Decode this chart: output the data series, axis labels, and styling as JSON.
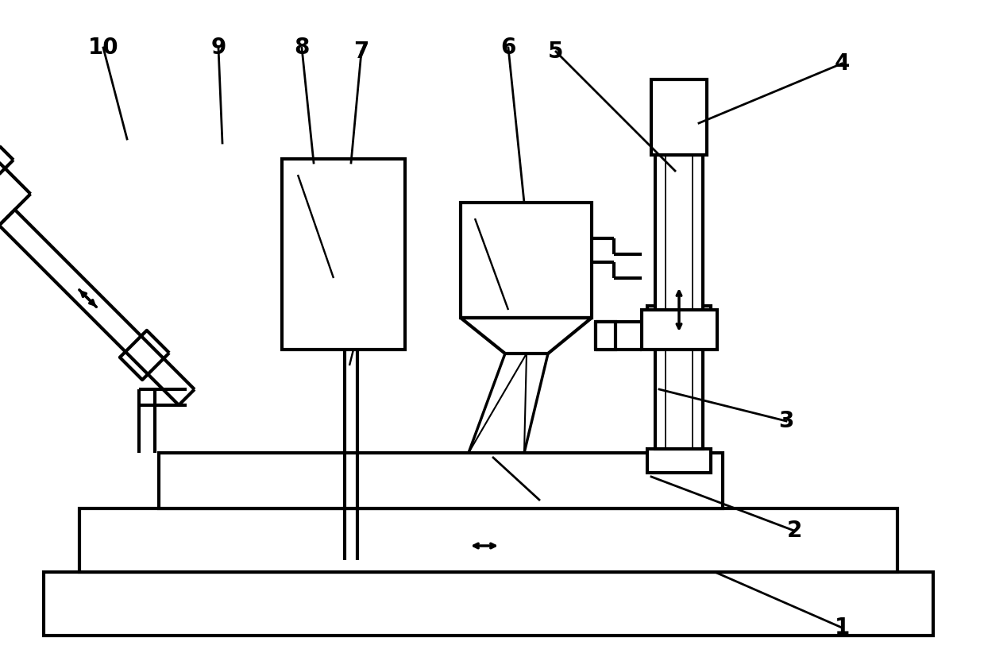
{
  "bg": "#ffffff",
  "lc": "#000000",
  "lw": 2.5,
  "tlw": 3.0,
  "fig_w": 12.39,
  "fig_h": 8.32,
  "dpi": 100
}
